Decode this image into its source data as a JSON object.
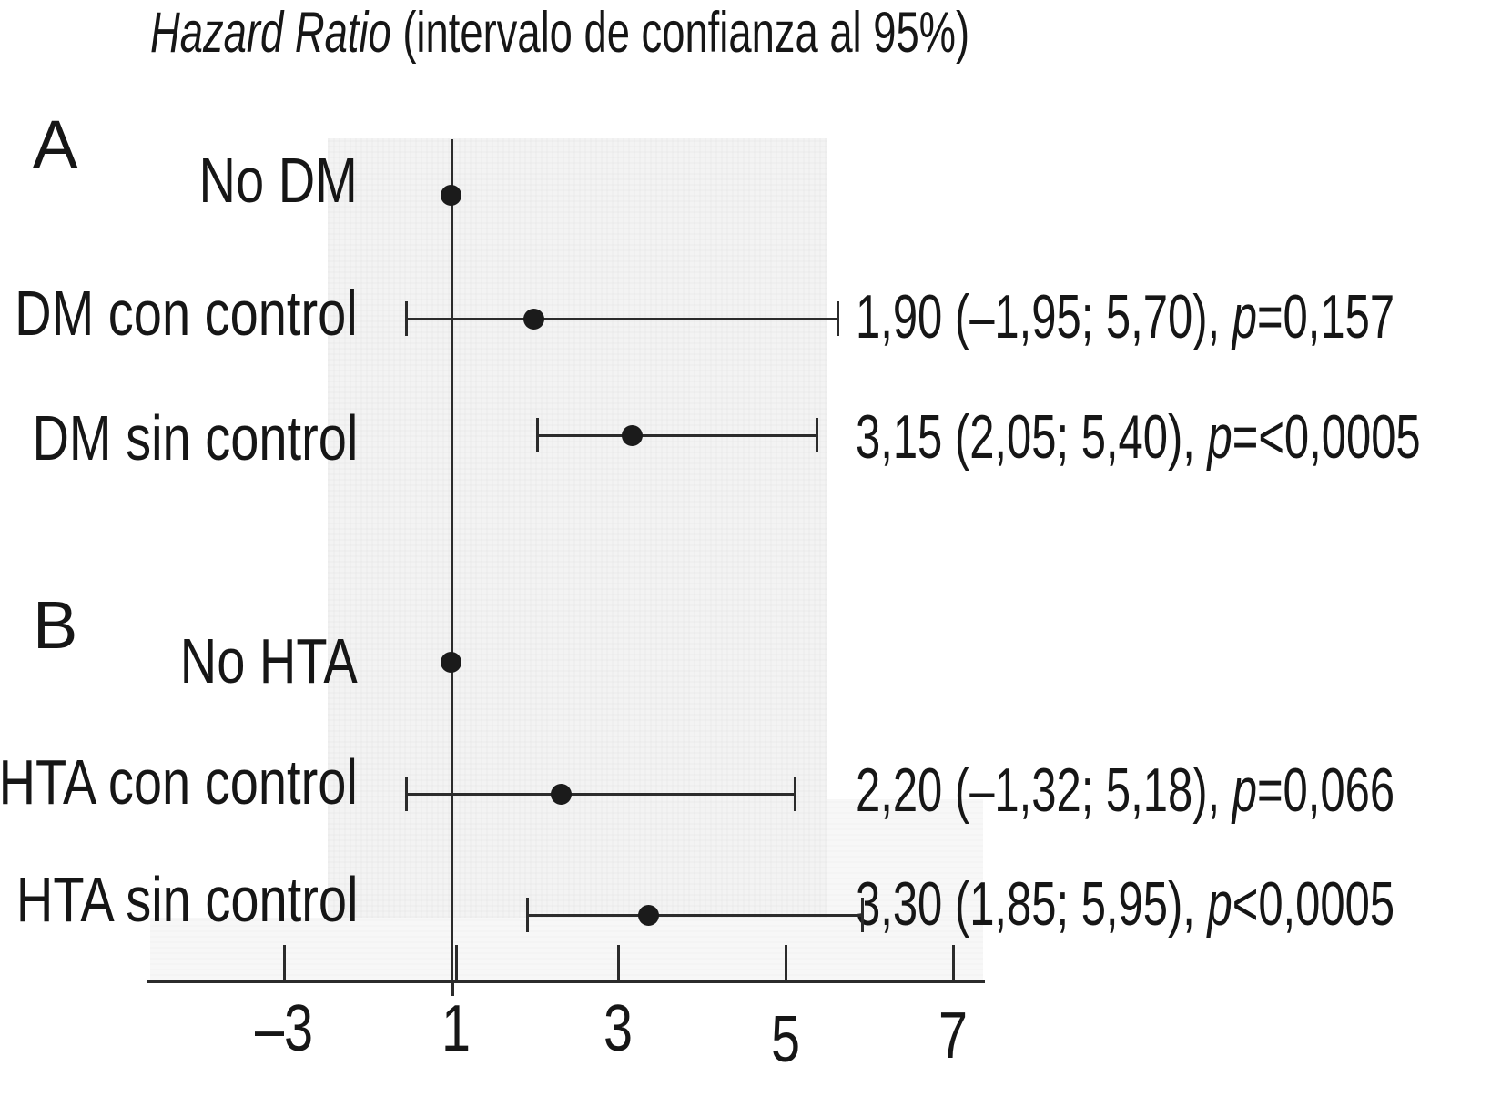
{
  "title": {
    "italic": "Hazard Ratio",
    "rest": " (intervalo de confianza al 95%)"
  },
  "chart_data": {
    "type": "scatter",
    "subtype": "forest-plot",
    "title": "Hazard Ratio (intervalo de confianza al 95%)",
    "x_axis": {
      "tick_labels": [
        "–3",
        "1",
        "3",
        "5",
        "7"
      ],
      "tick_values": [
        -3,
        1,
        3,
        5,
        7
      ],
      "reference_line_value": 1,
      "grid": false
    },
    "panels": [
      {
        "id": "A",
        "rows": [
          {
            "label": "No DM",
            "hr": 1.0
          },
          {
            "label": "DM con control",
            "hr": 1.9,
            "ci_low": -1.95,
            "ci_high": 5.7,
            "p": "0,157",
            "ann_pre": "1,90 (–1,95; 5,70), ",
            "ann_p": "p",
            "ann_post": "=0,157"
          },
          {
            "label": "DM sin control",
            "hr": 3.15,
            "ci_low": 2.05,
            "ci_high": 5.4,
            "p": "<0,0005",
            "ann_pre": "3,15 (2,05; 5,40), ",
            "ann_p": "p",
            "ann_post": "=<0,0005"
          }
        ]
      },
      {
        "id": "B",
        "rows": [
          {
            "label": "No HTA",
            "hr": 1.0
          },
          {
            "label": "HTA con control",
            "hr": 2.2,
            "ci_low": -1.32,
            "ci_high": 5.18,
            "p": "0,066",
            "ann_pre": "2,20 (–1,32; 5,18), ",
            "ann_p": "p",
            "ann_post": "=0,066"
          },
          {
            "label": "HTA sin control",
            "hr": 3.3,
            "ci_low": 1.85,
            "ci_high": 5.95,
            "p": "<0,0005",
            "ann_pre": "3,30 (1,85; 5,95), ",
            "ann_p": "p",
            "ann_post": "<0,0005"
          }
        ]
      }
    ]
  },
  "colors": {
    "ink": "#1b1b1b",
    "panel_background": "#f3f3f3",
    "page_background": "#ffffff"
  }
}
